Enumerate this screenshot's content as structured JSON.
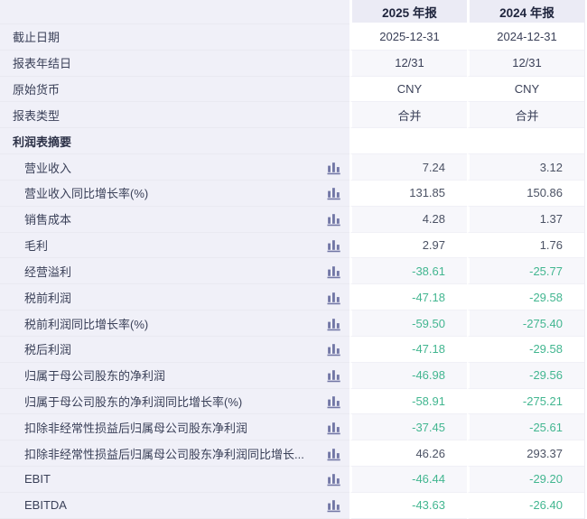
{
  "table": {
    "columns": [
      "2025 年报",
      "2024 年报"
    ],
    "colors": {
      "negative_value": "#42b690",
      "positive_value": "#4b5264",
      "header_bg": "#ebebf5",
      "label_column_bg": "#f0f0f8",
      "stripe_bg": "#f7f7fb",
      "icon": "#7277a6"
    },
    "icon_name": "bar-chart-icon",
    "rows": [
      {
        "label": "截止日期",
        "indent": 0,
        "bold": false,
        "icon": false,
        "align": "center",
        "values": [
          "2025-12-31",
          "2024-12-31"
        ]
      },
      {
        "label": "报表年结日",
        "indent": 0,
        "bold": false,
        "icon": false,
        "align": "center",
        "values": [
          "12/31",
          "12/31"
        ]
      },
      {
        "label": "原始货币",
        "indent": 0,
        "bold": false,
        "icon": false,
        "align": "center",
        "values": [
          "CNY",
          "CNY"
        ]
      },
      {
        "label": "报表类型",
        "indent": 0,
        "bold": false,
        "icon": false,
        "align": "center",
        "values": [
          "合并",
          "合并"
        ]
      },
      {
        "label": "利润表摘要",
        "indent": 0,
        "bold": true,
        "icon": false,
        "align": "center",
        "values": [
          "",
          ""
        ]
      },
      {
        "label": "营业收入",
        "indent": 1,
        "bold": false,
        "icon": true,
        "align": "right",
        "values": [
          "7.24",
          "3.12"
        ]
      },
      {
        "label": "营业收入同比增长率(%)",
        "indent": 1,
        "bold": false,
        "icon": true,
        "align": "right",
        "values": [
          "131.85",
          "150.86"
        ]
      },
      {
        "label": "销售成本",
        "indent": 1,
        "bold": false,
        "icon": true,
        "align": "right",
        "values": [
          "4.28",
          "1.37"
        ]
      },
      {
        "label": "毛利",
        "indent": 1,
        "bold": false,
        "icon": true,
        "align": "right",
        "values": [
          "2.97",
          "1.76"
        ]
      },
      {
        "label": "经营溢利",
        "indent": 1,
        "bold": false,
        "icon": true,
        "align": "right",
        "values": [
          "-38.61",
          "-25.77"
        ]
      },
      {
        "label": "税前利润",
        "indent": 1,
        "bold": false,
        "icon": true,
        "align": "right",
        "values": [
          "-47.18",
          "-29.58"
        ]
      },
      {
        "label": "税前利润同比增长率(%)",
        "indent": 1,
        "bold": false,
        "icon": true,
        "align": "right",
        "values": [
          "-59.50",
          "-275.40"
        ]
      },
      {
        "label": "税后利润",
        "indent": 1,
        "bold": false,
        "icon": true,
        "align": "right",
        "values": [
          "-47.18",
          "-29.58"
        ]
      },
      {
        "label": "归属于母公司股东的净利润",
        "indent": 1,
        "bold": false,
        "icon": true,
        "align": "right",
        "values": [
          "-46.98",
          "-29.56"
        ]
      },
      {
        "label": "归属于母公司股东的净利润同比增长率(%)",
        "indent": 1,
        "bold": false,
        "icon": true,
        "align": "right",
        "values": [
          "-58.91",
          "-275.21"
        ]
      },
      {
        "label": "扣除非经常性损益后归属母公司股东净利润",
        "indent": 1,
        "bold": false,
        "icon": true,
        "align": "right",
        "values": [
          "-37.45",
          "-25.61"
        ]
      },
      {
        "label": "扣除非经常性损益后归属母公司股东净利润同比增长...",
        "indent": 1,
        "bold": false,
        "icon": true,
        "align": "right",
        "values": [
          "46.26",
          "293.37"
        ]
      },
      {
        "label": "EBIT",
        "indent": 1,
        "bold": false,
        "icon": true,
        "align": "right",
        "values": [
          "-46.44",
          "-29.20"
        ]
      },
      {
        "label": "EBITDA",
        "indent": 1,
        "bold": false,
        "icon": true,
        "align": "right",
        "values": [
          "-43.63",
          "-26.40"
        ]
      }
    ]
  }
}
